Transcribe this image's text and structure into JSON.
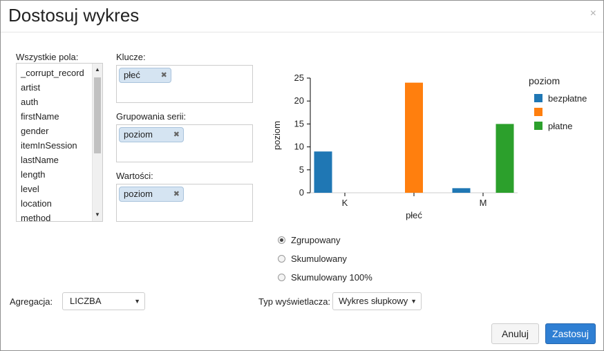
{
  "dialog": {
    "title": "Dostosuj wykres",
    "close_glyph": "×"
  },
  "fields": {
    "label": "Wszystkie pola:",
    "items": [
      "_corrupt_record",
      "artist",
      "auth",
      "firstName",
      "gender",
      "itemInSession",
      "lastName",
      "length",
      "level",
      "location",
      "method"
    ]
  },
  "keys": {
    "label": "Klucze:",
    "pill": "płeć"
  },
  "series_grouping": {
    "label": "Grupowania serii:",
    "pill": "poziom"
  },
  "values_zone": {
    "label": "Wartości:",
    "pill": "poziom"
  },
  "aggregation": {
    "label": "Agregacja:",
    "value": "LICZBA"
  },
  "display_type": {
    "label": "Typ wyświetlacza:",
    "value": "Wykres słupkowy"
  },
  "options": {
    "grouped": "Zgrupowany",
    "stacked": "Skumulowany",
    "stacked100": "Skumulowany 100%",
    "selected": "grouped"
  },
  "buttons": {
    "cancel": "Anuluj",
    "apply": "Zastosuj"
  },
  "chart_data": {
    "type": "bar",
    "categories": [
      "K",
      "",
      "M"
    ],
    "series": [
      {
        "name": "bezpłatne",
        "color": "#1f77b4",
        "values": [
          9,
          0,
          1
        ]
      },
      {
        "name": "",
        "color": "#ff7f0e",
        "values": [
          0,
          24,
          0
        ]
      },
      {
        "name": "płatne",
        "color": "#2ca02c",
        "values": [
          0,
          0,
          15
        ]
      }
    ],
    "xlabel": "płeć",
    "ylabel": "poziom",
    "ylim": [
      0,
      25
    ],
    "yticks": [
      "0",
      "5",
      "10",
      "15",
      "20",
      "25"
    ],
    "legend_title": "poziom",
    "legend_position": "right"
  }
}
